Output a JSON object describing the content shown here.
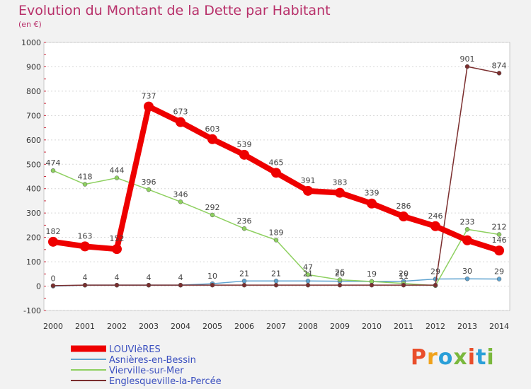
{
  "title": "Evolution du Montant de la Dette par Habitant",
  "unit_label": "(en €)",
  "logo": {
    "text": "Proxiti",
    "colors": [
      "#e94e2b",
      "#f0a21c",
      "#2a9fd8",
      "#7ab83d",
      "#e94e2b",
      "#2a9fd8",
      "#7ab83d"
    ]
  },
  "chart_data": {
    "type": "line",
    "title": "Evolution du Montant de la Dette par Habitant",
    "ylabel": "(en €)",
    "xlabel": "",
    "x": [
      "2000",
      "2001",
      "2002",
      "2003",
      "2004",
      "2005",
      "2006",
      "2007",
      "2008",
      "2009",
      "2010",
      "2011",
      "2012",
      "2013",
      "2014"
    ],
    "ylim": [
      -100,
      1000
    ],
    "yticks": [
      -100,
      0,
      100,
      200,
      300,
      400,
      500,
      600,
      700,
      800,
      900,
      1000
    ],
    "grid": true,
    "legend_position": "bottom-left",
    "series": [
      {
        "name": "LOUVIèRES",
        "color": "#ee0000",
        "width": 8,
        "marker": 7,
        "values": [
          182,
          163,
          152,
          737,
          673,
          603,
          539,
          465,
          391,
          383,
          339,
          286,
          246,
          188,
          146
        ],
        "labels": [
          "182",
          "163",
          "152",
          "737",
          "673",
          "603",
          "539",
          "465",
          "391",
          "383",
          "339",
          "286",
          "246",
          "",
          "146"
        ]
      },
      {
        "name": "Asnières-en-Bessin",
        "color": "#5fa3d0",
        "width": 1.5,
        "marker": 3,
        "values": [
          0,
          4,
          4,
          4,
          4,
          10,
          21,
          21,
          21,
          20,
          19,
          20,
          29,
          30,
          29
        ],
        "labels": [
          "0",
          "4",
          "4",
          "4",
          "4",
          "10",
          "21",
          "21",
          "21",
          "20",
          "19",
          "20",
          "29",
          "30",
          "29"
        ]
      },
      {
        "name": "Vierville-sur-Mer",
        "color": "#8ed060",
        "width": 1.5,
        "marker": 3,
        "values": [
          474,
          418,
          444,
          396,
          346,
          292,
          236,
          189,
          47,
          26,
          19,
          11,
          2,
          233,
          212
        ],
        "labels": [
          "474",
          "418",
          "444",
          "396",
          "346",
          "292",
          "236",
          "189",
          "47",
          "26",
          "",
          "11",
          "",
          "233",
          "212"
        ]
      },
      {
        "name": "Englesqueville-la-Percée",
        "color": "#7b2e2e",
        "width": 1.5,
        "marker": 3,
        "values": [
          2,
          4,
          4,
          4,
          4,
          4,
          4,
          4,
          4,
          4,
          4,
          4,
          4,
          901,
          874
        ],
        "labels": [
          "",
          "",
          "",
          "",
          "",
          "",
          "",
          "",
          "",
          "",
          "",
          "",
          "",
          "901",
          "874"
        ]
      }
    ]
  }
}
